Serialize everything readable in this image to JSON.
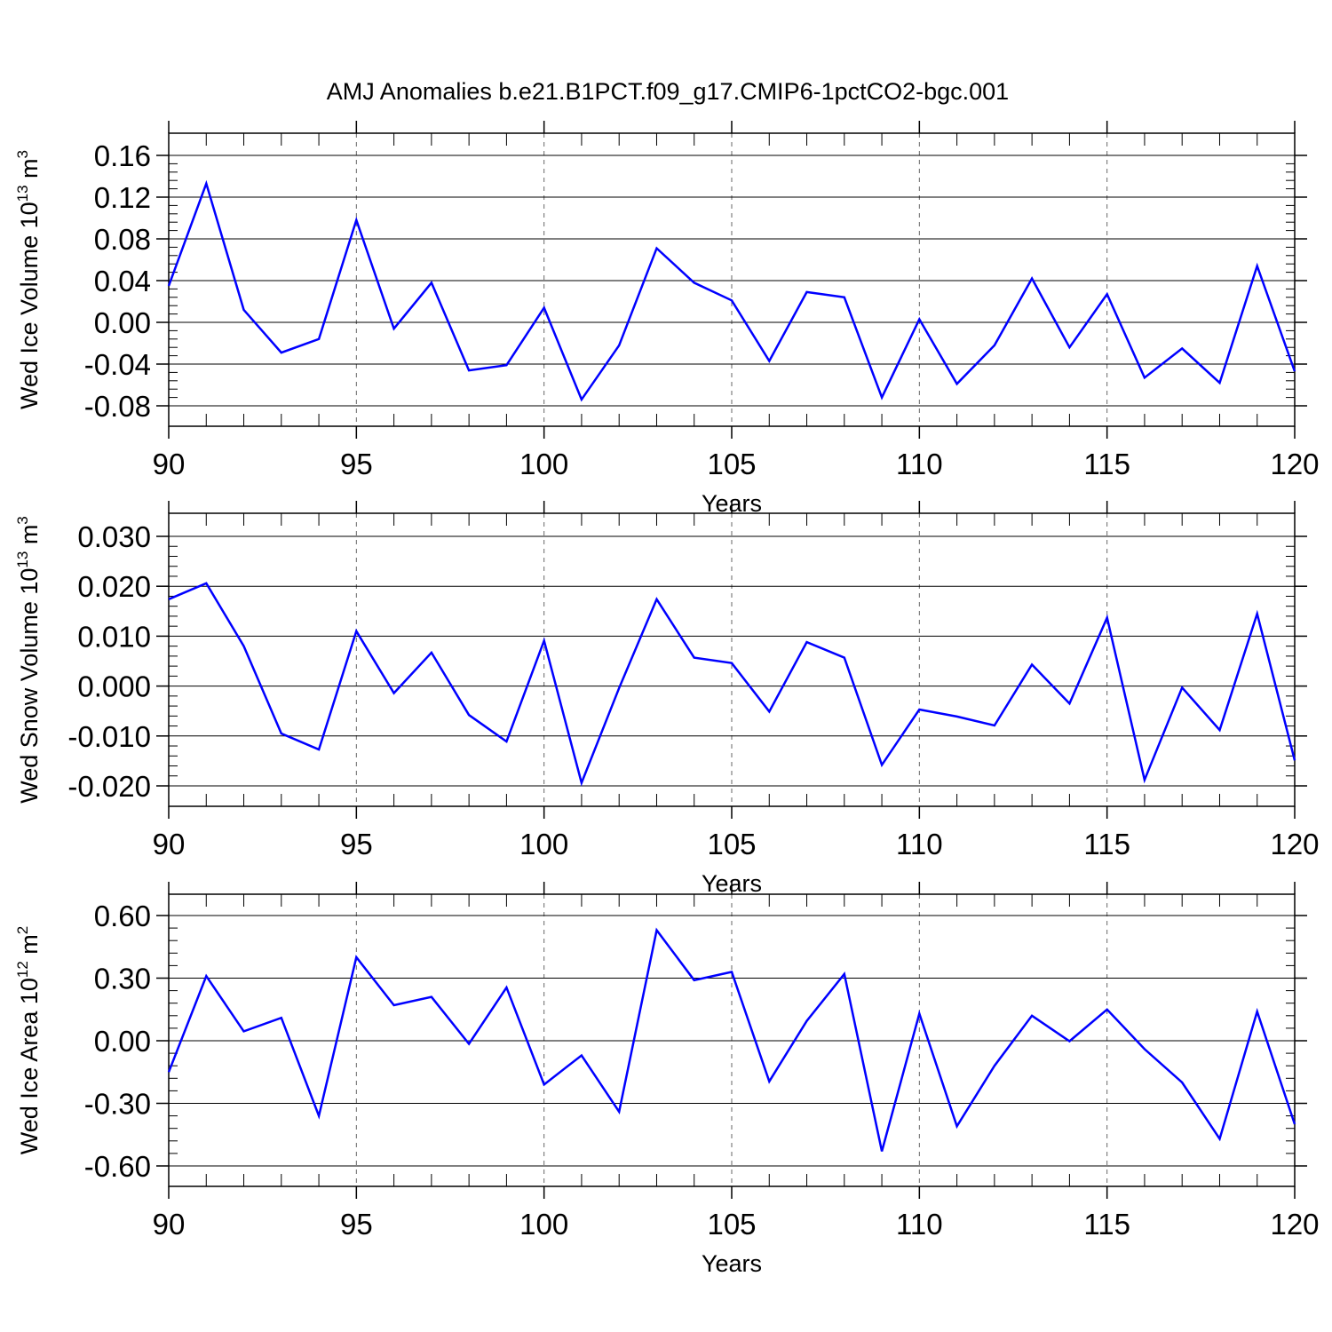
{
  "title": "AMJ Anomalies b.e21.B1PCT.f09_g17.CMIP6-1pctCO2-bgc.001",
  "colors": {
    "series": "#0000ff",
    "axis": "#000000",
    "grid": "#666666"
  },
  "chart_data": [
    {
      "type": "line",
      "xlabel": "Years",
      "ylabel": {
        "text": "Wed Ice Volume 10",
        "exponent": "13",
        "unit": " m",
        "unit_exponent": "3"
      },
      "xlim": [
        90,
        120
      ],
      "ylim": [
        -0.08,
        0.16
      ],
      "xticks": [
        90,
        95,
        100,
        105,
        110,
        115,
        120
      ],
      "xtick_labels": [
        "90",
        "95",
        "100",
        "105",
        "110",
        "115",
        "120"
      ],
      "yticks": [
        -0.08,
        -0.04,
        0.0,
        0.04,
        0.08,
        0.12,
        0.16
      ],
      "ytick_labels": [
        "-0.08",
        "-0.04",
        "0.00",
        "0.04",
        "0.08",
        "0.12",
        "0.16"
      ],
      "grid": "vertical dashed at major x ticks",
      "x": [
        90,
        91,
        92,
        93,
        94,
        95,
        96,
        97,
        98,
        99,
        100,
        101,
        102,
        103,
        104,
        105,
        106,
        107,
        108,
        109,
        110,
        111,
        112,
        113,
        114,
        115,
        116,
        117,
        118,
        119,
        120
      ],
      "y": [
        0.035,
        0.133,
        0.012,
        -0.029,
        -0.016,
        0.098,
        -0.006,
        0.038,
        -0.046,
        -0.041,
        0.014,
        -0.074,
        -0.022,
        0.071,
        0.038,
        0.021,
        -0.037,
        0.029,
        0.024,
        -0.072,
        0.003,
        -0.059,
        -0.022,
        0.042,
        -0.024,
        0.027,
        -0.053,
        -0.025,
        -0.058,
        0.054,
        -0.047
      ]
    },
    {
      "type": "line",
      "xlabel": "Years",
      "ylabel": {
        "text": "Wed Snow Volume 10",
        "exponent": "13",
        "unit": " m",
        "unit_exponent": "3"
      },
      "xlim": [
        90,
        120
      ],
      "ylim": [
        -0.02,
        0.03
      ],
      "xticks": [
        90,
        95,
        100,
        105,
        110,
        115,
        120
      ],
      "xtick_labels": [
        "90",
        "95",
        "100",
        "105",
        "110",
        "115",
        "120"
      ],
      "yticks": [
        -0.02,
        -0.01,
        0.0,
        0.01,
        0.02,
        0.03
      ],
      "ytick_labels": [
        "-0.020",
        "-0.010",
        "0.000",
        "0.010",
        "0.020",
        "0.030"
      ],
      "grid": "vertical dashed at major x ticks",
      "x": [
        90,
        91,
        92,
        93,
        94,
        95,
        96,
        97,
        98,
        99,
        100,
        101,
        102,
        103,
        104,
        105,
        106,
        107,
        108,
        109,
        110,
        111,
        112,
        113,
        114,
        115,
        116,
        117,
        118,
        119,
        120
      ],
      "y": [
        0.0174,
        0.0206,
        0.008,
        -0.0095,
        -0.0127,
        0.011,
        -0.0014,
        0.0067,
        -0.0058,
        -0.0111,
        0.0091,
        -0.0194,
        -0.0004,
        0.0174,
        0.0057,
        0.0046,
        -0.0051,
        0.0088,
        0.0057,
        -0.0158,
        -0.0047,
        -0.0061,
        -0.0079,
        0.0043,
        -0.0035,
        0.0137,
        -0.0188,
        -0.0003,
        -0.0088,
        0.0145,
        -0.0149
      ]
    },
    {
      "type": "line",
      "xlabel": "Years",
      "ylabel": {
        "text": "Wed Ice Area 10",
        "exponent": "12",
        "unit": " m",
        "unit_exponent": "2"
      },
      "xlim": [
        90,
        120
      ],
      "ylim": [
        -0.6,
        0.6
      ],
      "xticks": [
        90,
        95,
        100,
        105,
        110,
        115,
        120
      ],
      "xtick_labels": [
        "90",
        "95",
        "100",
        "105",
        "110",
        "115",
        "120"
      ],
      "yticks": [
        -0.6,
        -0.3,
        0.0,
        0.3,
        0.6
      ],
      "ytick_labels": [
        "-0.60",
        "-0.30",
        "0.00",
        "0.30",
        "0.60"
      ],
      "grid": "vertical dashed at major x ticks",
      "x": [
        90,
        91,
        92,
        93,
        94,
        95,
        96,
        97,
        98,
        99,
        100,
        101,
        102,
        103,
        104,
        105,
        106,
        107,
        108,
        109,
        110,
        111,
        112,
        113,
        114,
        115,
        116,
        117,
        118,
        119,
        120
      ],
      "y": [
        -0.15,
        0.31,
        0.045,
        0.11,
        -0.36,
        0.4,
        0.17,
        0.21,
        -0.015,
        0.255,
        -0.21,
        -0.07,
        -0.34,
        0.53,
        0.29,
        0.33,
        -0.195,
        0.095,
        0.32,
        -0.53,
        0.13,
        -0.41,
        -0.12,
        0.12,
        -0.002,
        0.15,
        -0.04,
        -0.2,
        -0.47,
        0.14,
        -0.4
      ]
    }
  ]
}
